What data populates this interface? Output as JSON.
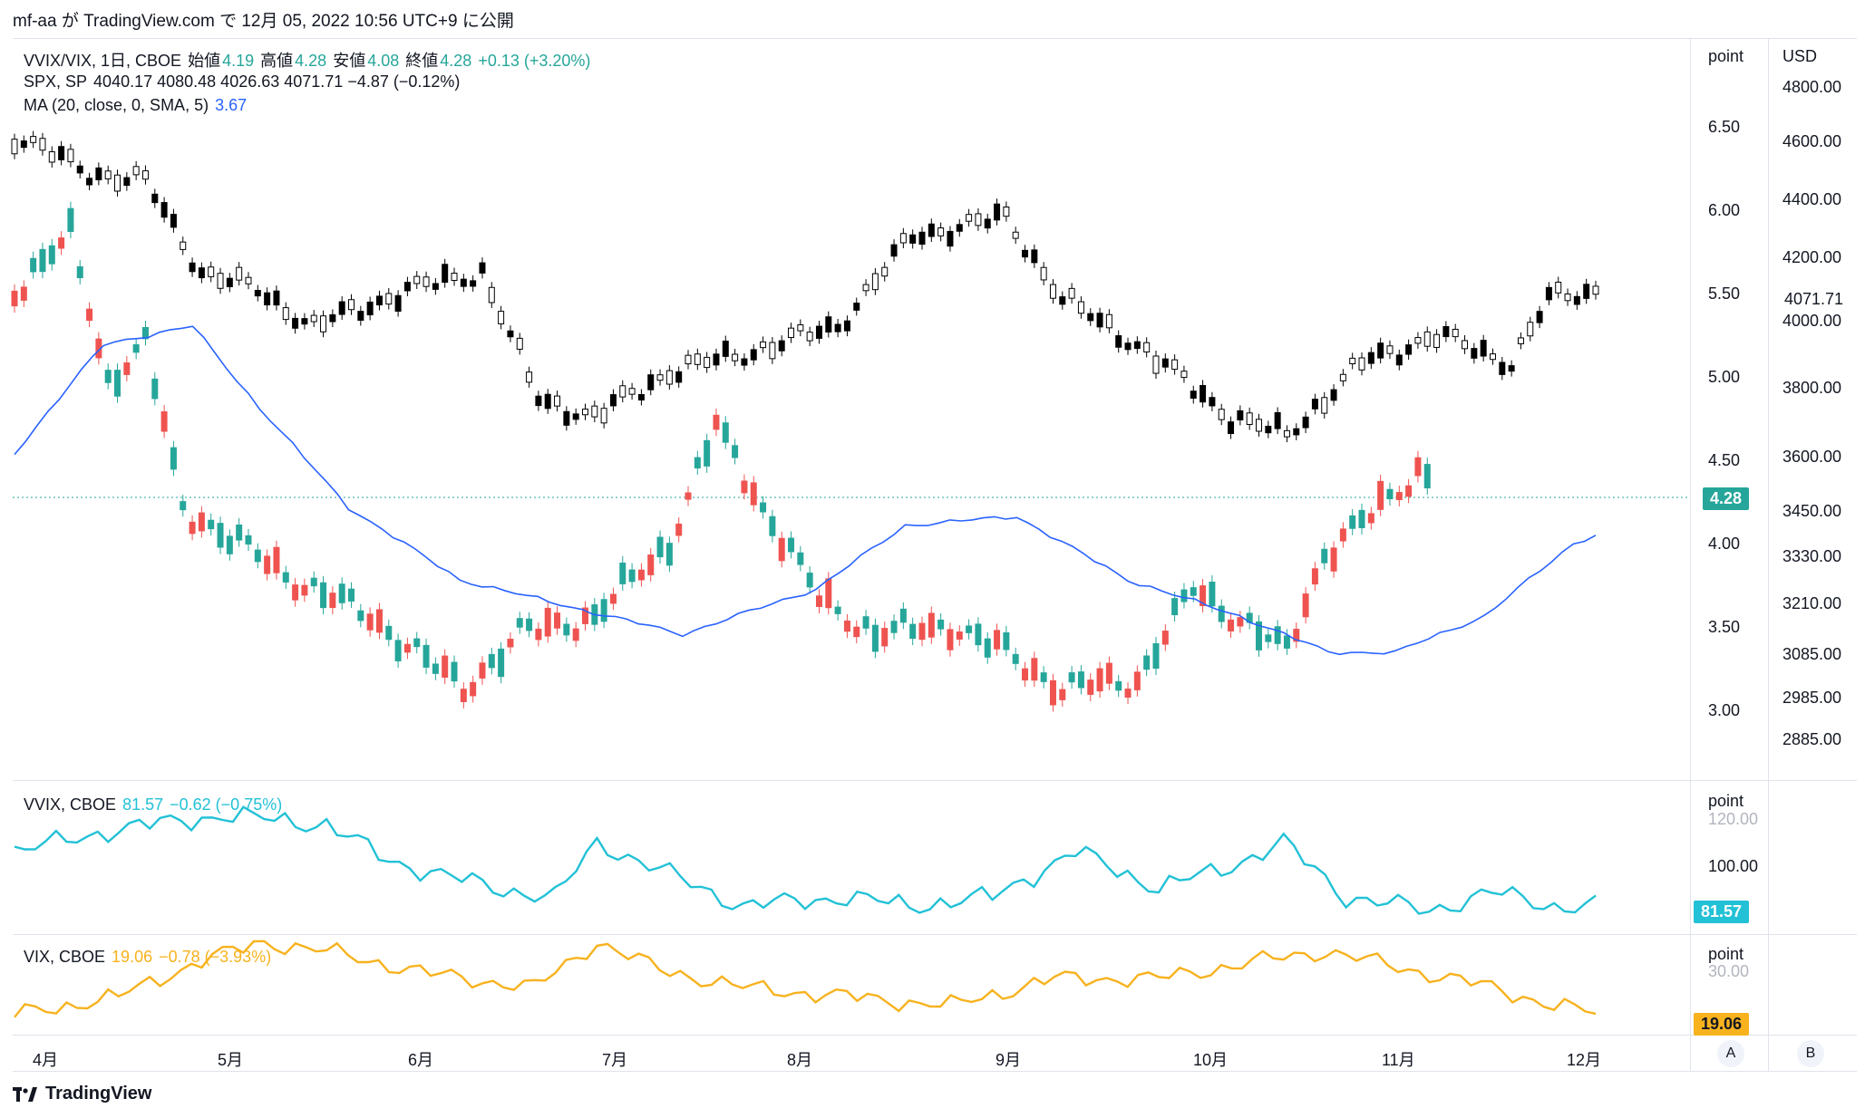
{
  "header": {
    "publish_line": "mf-aa が TradingView.com で 12月 05, 2022 10:56 UTC+9 に公開"
  },
  "legend_main": {
    "symbol": "VVIX/VIX, 1日, CBOE",
    "open_label": "始値",
    "open": "4.19",
    "high_label": "高値",
    "high": "4.28",
    "low_label": "安値",
    "low": "4.08",
    "close_label": "終値",
    "close": "4.28",
    "change": "+0.13 (+3.20%)"
  },
  "legend_spx": {
    "symbol": "SPX, SP",
    "values": "4040.17  4080.48  4026.63  4071.71  −4.87 (−0.12%)"
  },
  "legend_ma": {
    "label": "MA (20, close, 0, SMA, 5)",
    "value": "3.67"
  },
  "legend_vvix": {
    "symbol": "VVIX, CBOE",
    "value": "81.57",
    "change": "−0.62 (−0.75%)"
  },
  "legend_vix": {
    "symbol": "VIX, CBOE",
    "value": "19.06",
    "change": "−0.78 (−3.93%)"
  },
  "axes": {
    "point_label": "point",
    "usd_label": "USD",
    "point_ticks": [
      "6.50",
      "6.00",
      "5.50",
      "5.00",
      "4.50",
      "4.00",
      "3.50",
      "3.00"
    ],
    "usd_ticks": [
      "4800.00",
      "4600.00",
      "4400.00",
      "4200.00",
      "4000.00",
      "3800.00",
      "3600.00",
      "3450.00",
      "3330.00",
      "3210.00",
      "3085.00",
      "2985.00",
      "2885.00"
    ],
    "ratio_last": "4.28",
    "spx_last": "4071.71",
    "vvix_ticks": [
      "120.00",
      "100.00"
    ],
    "vvix_last": "81.57",
    "vix_ticks": [
      "30.00"
    ],
    "vix_last": "19.06"
  },
  "time_axis": {
    "months": [
      "4月",
      "5月",
      "6月",
      "7月",
      "8月",
      "9月",
      "10月",
      "11月",
      "12月"
    ]
  },
  "buttons": {
    "a": "A",
    "b": "B"
  },
  "footer": {
    "brand": "TradingView"
  },
  "colors": {
    "up": "#26a69a",
    "down": "#ef5350",
    "ma": "#2962ff",
    "vvix": "#22c1d6",
    "vix": "#f7b21e",
    "spx": "#000000"
  }
}
